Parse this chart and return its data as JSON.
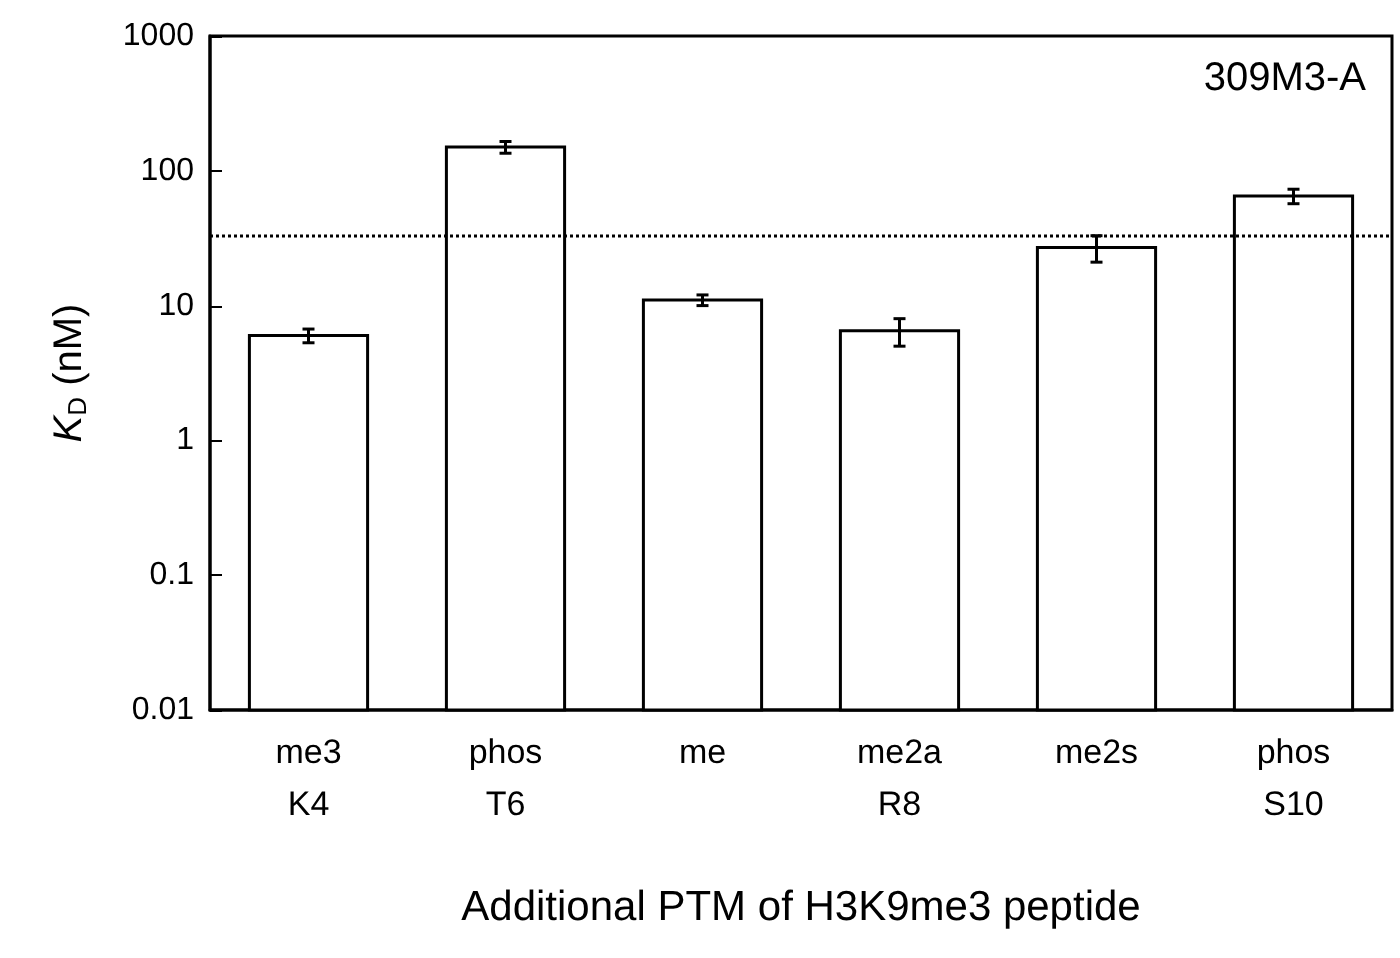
{
  "chart_data": {
    "type": "bar",
    "categories": [
      "me3\nK4",
      "phos\nT6",
      "me",
      "me2a\nR8",
      "me2s",
      "phos\nS10"
    ],
    "values": [
      6,
      150,
      11,
      6.5,
      27,
      65
    ],
    "errors": [
      0.7,
      15,
      1,
      1.5,
      6,
      8
    ],
    "color": "#ffffff",
    "log": true,
    "ylim": [
      0.01,
      1000
    ],
    "yticks": [
      0.01,
      0.1,
      1,
      10,
      100,
      1000
    ],
    "ylabel": "K$_{D}$ (nM)",
    "xlabel": "Additional PTM of H3K9me3 peptide",
    "ref_lines": [
      {
        "axis": "y",
        "value": 33,
        "line_style": "dotted"
      }
    ],
    "annotations": [
      "309M3-A"
    ]
  }
}
